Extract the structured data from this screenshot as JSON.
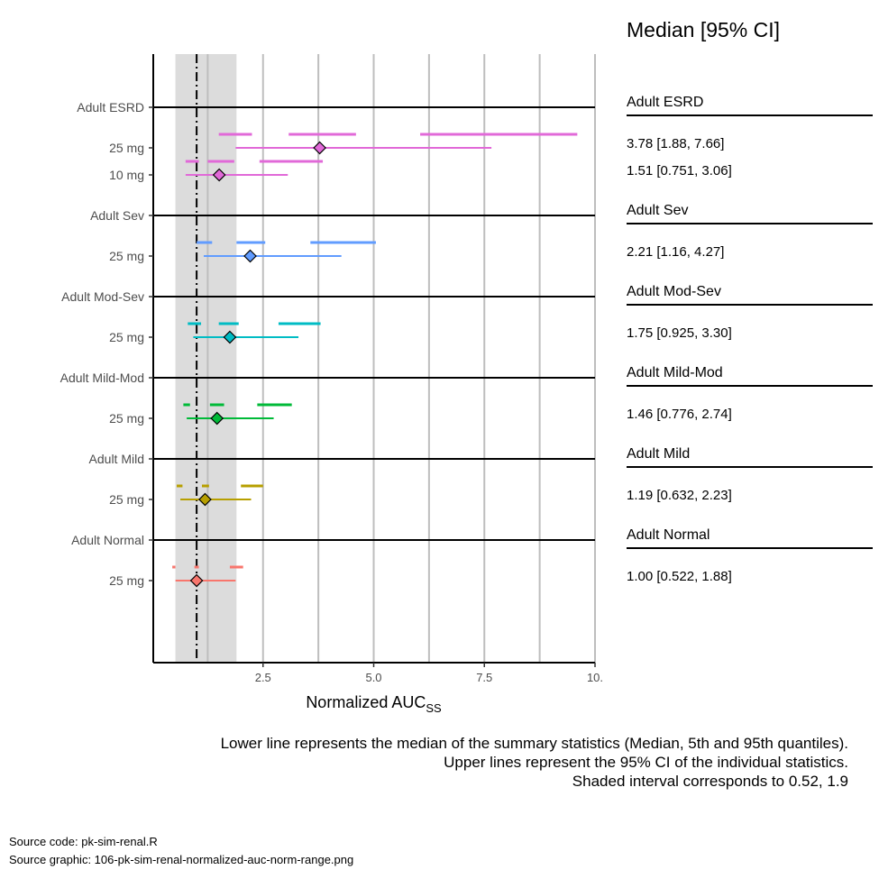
{
  "chart_data": {
    "type": "forest",
    "xlabel_main": "Normalized AUC",
    "xlabel_sub": "SS",
    "xticks": [
      2.5,
      5.0,
      7.5,
      10
    ],
    "xtick_labels": [
      "2.5",
      "5.0",
      "7.5",
      "10."
    ],
    "reference_line": 1.0,
    "shaded_interval": [
      0.52,
      1.9
    ],
    "right_title": "Median [95% CI]",
    "colors": {
      "Adult ESRD": "#e169d8",
      "Adult Sev": "#619cff",
      "Adult Mod-Sev": "#00bcc4",
      "Adult Mild-Mod": "#00ba38",
      "Adult Mild": "#b79f00",
      "Adult Normal": "#f8766d",
      "shade": "#dcdcdc",
      "grid": "#bebebe"
    },
    "groups": [
      {
        "name": "Adult ESRD",
        "rows": [
          {
            "label": "25 mg",
            "median": 3.78,
            "lower": 1.88,
            "upper": 7.66,
            "text": "3.78 [1.88, 7.66]",
            "upper_lines": [
              [
                1.5,
                2.25
              ],
              [
                3.08,
                4.6
              ],
              [
                6.05,
                9.6
              ]
            ]
          },
          {
            "label": "10 mg",
            "median": 1.51,
            "lower": 0.751,
            "upper": 3.06,
            "text": "1.51 [0.751, 3.06]",
            "upper_lines": [
              [
                0.75,
                1.05
              ],
              [
                1.25,
                1.85
              ],
              [
                2.42,
                3.85
              ]
            ]
          }
        ]
      },
      {
        "name": "Adult Sev",
        "rows": [
          {
            "label": "25 mg",
            "median": 2.21,
            "lower": 1.16,
            "upper": 4.27,
            "text": "2.21 [1.16, 4.27]",
            "upper_lines": [
              [
                1.0,
                1.35
              ],
              [
                1.9,
                2.55
              ],
              [
                3.57,
                5.05
              ]
            ]
          }
        ]
      },
      {
        "name": "Adult Mod-Sev",
        "rows": [
          {
            "label": "25 mg",
            "median": 1.75,
            "lower": 0.925,
            "upper": 3.3,
            "text": "1.75 [0.925, 3.30]",
            "upper_lines": [
              [
                0.8,
                1.1
              ],
              [
                1.5,
                1.95
              ],
              [
                2.85,
                3.8
              ]
            ]
          }
        ]
      },
      {
        "name": "Adult Mild-Mod",
        "rows": [
          {
            "label": "25 mg",
            "median": 1.46,
            "lower": 0.776,
            "upper": 2.74,
            "text": "1.46 [0.776, 2.74]",
            "upper_lines": [
              [
                0.7,
                0.85
              ],
              [
                1.3,
                1.62
              ],
              [
                2.37,
                3.15
              ]
            ]
          }
        ]
      },
      {
        "name": "Adult Mild",
        "rows": [
          {
            "label": "25 mg",
            "median": 1.19,
            "lower": 0.632,
            "upper": 2.23,
            "text": "1.19 [0.632, 2.23]",
            "upper_lines": [
              [
                0.55,
                0.68
              ],
              [
                1.12,
                1.28
              ],
              [
                2.0,
                2.5
              ]
            ]
          }
        ]
      },
      {
        "name": "Adult Normal",
        "rows": [
          {
            "label": "25 mg",
            "median": 1.0,
            "lower": 0.522,
            "upper": 1.88,
            "text": "1.00 [0.522, 1.88]",
            "upper_lines": [
              [
                0.45,
                0.52
              ],
              [
                0.95,
                1.05
              ],
              [
                1.75,
                2.05
              ]
            ]
          }
        ]
      }
    ]
  },
  "caption": {
    "line1": "Lower line represents the median of the summary statistics (Median, 5th and 95th quantiles).",
    "line2": "Upper lines represent the 95% CI of the individual statistics.",
    "line3": "Shaded interval corresponds to 0.52, 1.9"
  },
  "source": {
    "code": "Source code: pk-sim-renal.R",
    "graphic": "Source graphic: 106-pk-sim-renal-normalized-auc-norm-range.png"
  }
}
